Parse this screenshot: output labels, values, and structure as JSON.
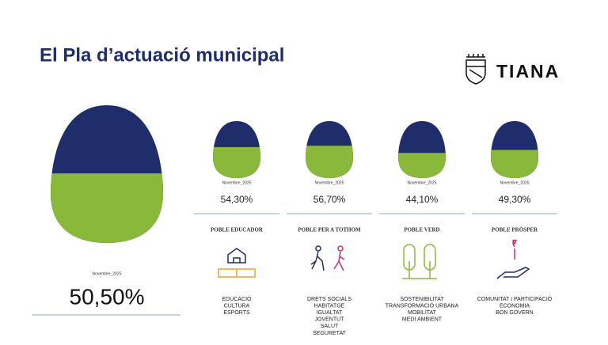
{
  "header": {
    "title": "El Pla d’actuació municipal",
    "logo": "TIANA"
  },
  "main": {
    "date": "Novembre_2025",
    "value": 50.5,
    "value_label": "50,50%"
  },
  "items": [
    {
      "date": "Novembre_2025",
      "value": 54.3,
      "value_label": "54,30%",
      "title": "POBLE EDUCADOR",
      "topics": [
        "EDUCACIÓ",
        "CULTURA",
        "ESPORTS"
      ]
    },
    {
      "date": "Novembre_2025",
      "value": 56.7,
      "value_label": "56,70%",
      "title": "POBLE PER A TOTHOM",
      "topics": [
        "DRETS SOCIALS",
        "HABITATGE",
        "IGUALTAT",
        "JOVENTUT",
        "SALUT",
        "SEGURETAT"
      ]
    },
    {
      "date": "Novembre_2025",
      "value": 44.1,
      "value_label": "44,10%",
      "title": "POBLE VERD",
      "topics": [
        "SOSTENIBILITAT",
        "TRANSFORMACIÓ URBANA",
        "MOBILITAT",
        "MEDI AMBIENT"
      ]
    },
    {
      "date": "Novembre_2025",
      "value": 49.3,
      "value_label": "49,30%",
      "title": "POBLE PRÒSPER",
      "topics": [
        "COMUNITAT I PARTICIPACIÓ",
        "ECONOMIA",
        "BON GOVERN"
      ]
    }
  ]
}
